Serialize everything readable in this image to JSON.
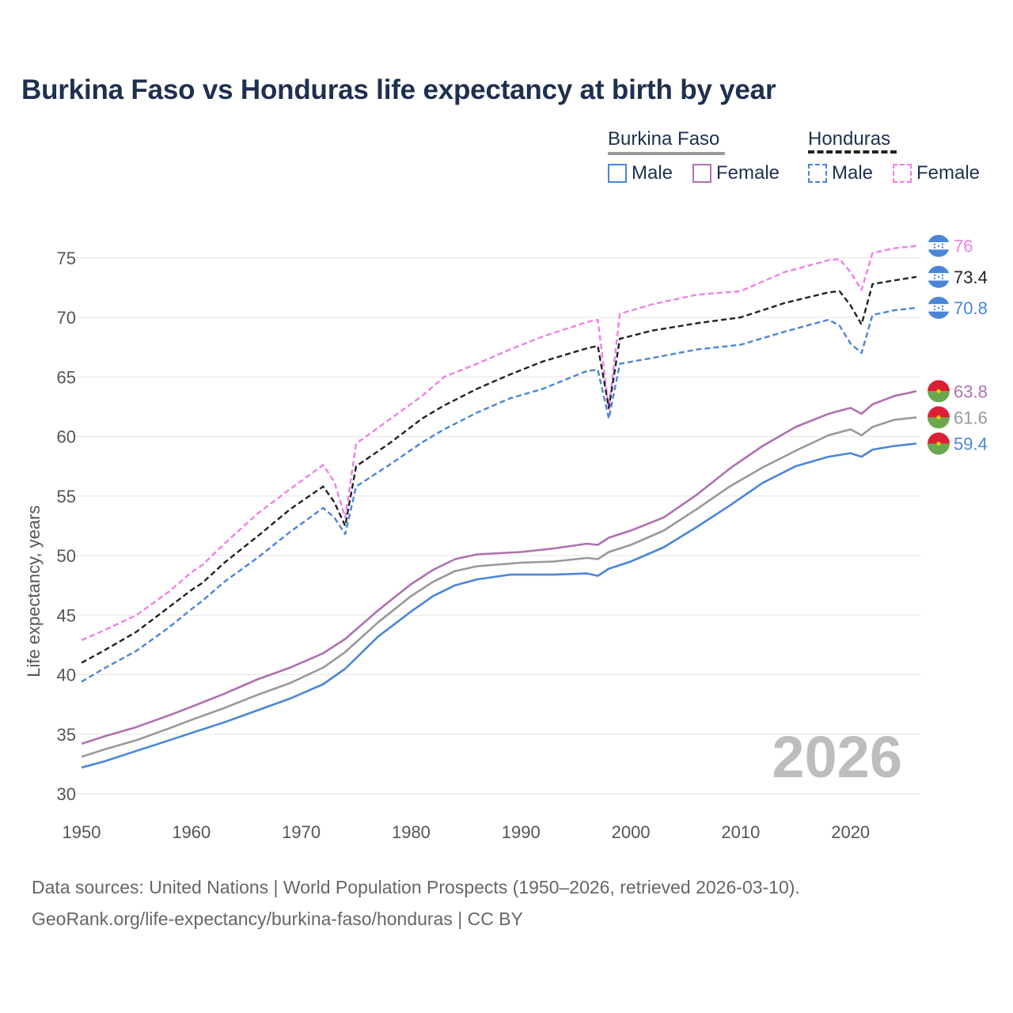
{
  "chart_data": {
    "type": "line",
    "title": "Burkina Faso vs Honduras life expectancy at birth by year",
    "ylabel": "Life expectancy, years",
    "xlabel": "",
    "xlim": [
      1950,
      2026
    ],
    "ylim": [
      30,
      77
    ],
    "x_ticks": [
      1950,
      1960,
      1970,
      1980,
      1990,
      2000,
      2010,
      2020
    ],
    "y_ticks": [
      30,
      35,
      40,
      45,
      50,
      55,
      60,
      65,
      70,
      75
    ],
    "year_watermark": "2026",
    "legend": {
      "groups": [
        {
          "name": "Burkina Faso",
          "color": "#999999",
          "style": "solid"
        },
        {
          "name": "Honduras",
          "color": "#222222",
          "style": "dashed"
        }
      ],
      "items": [
        {
          "label": "Male",
          "color": "#4a86d8",
          "style": "solid"
        },
        {
          "label": "Female",
          "color": "#b070b0",
          "style": "solid"
        },
        {
          "label": "Male",
          "color": "#4a86d8",
          "style": "dashed"
        },
        {
          "label": "Female",
          "color": "#f080e8",
          "style": "dashed"
        }
      ]
    },
    "series": [
      {
        "name": "Honduras Female",
        "country": "Honduras",
        "color": "#f080e8",
        "dash": true,
        "end_label": "76",
        "flag": "honduras",
        "points": [
          [
            1950,
            42.9
          ],
          [
            1952,
            43.7
          ],
          [
            1955,
            45.0
          ],
          [
            1958,
            47.0
          ],
          [
            1960,
            48.6
          ],
          [
            1961,
            49.2
          ],
          [
            1963,
            51.0
          ],
          [
            1966,
            53.5
          ],
          [
            1969,
            55.6
          ],
          [
            1972,
            57.6
          ],
          [
            1973,
            56.2
          ],
          [
            1974,
            53.2
          ],
          [
            1975,
            59.4
          ],
          [
            1978,
            61.4
          ],
          [
            1981,
            63.4
          ],
          [
            1983,
            65.0
          ],
          [
            1986,
            66.1
          ],
          [
            1989,
            67.3
          ],
          [
            1992,
            68.4
          ],
          [
            1996,
            69.6
          ],
          [
            1997,
            69.8
          ],
          [
            1998,
            62.3
          ],
          [
            1999,
            70.3
          ],
          [
            2002,
            71.1
          ],
          [
            2006,
            71.9
          ],
          [
            2010,
            72.2
          ],
          [
            2014,
            73.8
          ],
          [
            2018,
            74.8
          ],
          [
            2019,
            74.9
          ],
          [
            2020,
            73.8
          ],
          [
            2021,
            72.3
          ],
          [
            2022,
            75.4
          ],
          [
            2024,
            75.8
          ],
          [
            2026,
            76.0
          ]
        ]
      },
      {
        "name": "Honduras Both",
        "country": "Honduras",
        "color": "#222222",
        "dash": true,
        "end_label": "73.4",
        "flag": "honduras",
        "points": [
          [
            1950,
            41.0
          ],
          [
            1952,
            42.0
          ],
          [
            1955,
            43.6
          ],
          [
            1958,
            45.7
          ],
          [
            1960,
            47.1
          ],
          [
            1961,
            47.7
          ],
          [
            1963,
            49.4
          ],
          [
            1966,
            51.6
          ],
          [
            1969,
            53.9
          ],
          [
            1972,
            55.8
          ],
          [
            1973,
            54.5
          ],
          [
            1974,
            52.5
          ],
          [
            1975,
            57.5
          ],
          [
            1978,
            59.4
          ],
          [
            1981,
            61.5
          ],
          [
            1983,
            62.6
          ],
          [
            1986,
            64.0
          ],
          [
            1989,
            65.2
          ],
          [
            1992,
            66.3
          ],
          [
            1996,
            67.4
          ],
          [
            1997,
            67.6
          ],
          [
            1998,
            62.4
          ],
          [
            1999,
            68.2
          ],
          [
            2002,
            68.9
          ],
          [
            2006,
            69.5
          ],
          [
            2010,
            70.0
          ],
          [
            2014,
            71.2
          ],
          [
            2018,
            72.1
          ],
          [
            2019,
            72.2
          ],
          [
            2020,
            71.0
          ],
          [
            2021,
            69.4
          ],
          [
            2022,
            72.8
          ],
          [
            2024,
            73.1
          ],
          [
            2026,
            73.4
          ]
        ]
      },
      {
        "name": "Honduras Male",
        "country": "Honduras",
        "color": "#4a86d8",
        "dash": true,
        "end_label": "70.8",
        "flag": "honduras",
        "points": [
          [
            1950,
            39.4
          ],
          [
            1952,
            40.5
          ],
          [
            1955,
            42.0
          ],
          [
            1958,
            44.0
          ],
          [
            1960,
            45.5
          ],
          [
            1961,
            46.2
          ],
          [
            1963,
            47.8
          ],
          [
            1966,
            49.8
          ],
          [
            1969,
            52.0
          ],
          [
            1972,
            54.0
          ],
          [
            1973,
            53.2
          ],
          [
            1974,
            51.8
          ],
          [
            1975,
            55.8
          ],
          [
            1978,
            57.6
          ],
          [
            1981,
            59.5
          ],
          [
            1983,
            60.6
          ],
          [
            1986,
            62.0
          ],
          [
            1989,
            63.2
          ],
          [
            1992,
            64.0
          ],
          [
            1996,
            65.5
          ],
          [
            1997,
            65.6
          ],
          [
            1998,
            61.5
          ],
          [
            1999,
            66.1
          ],
          [
            2002,
            66.6
          ],
          [
            2006,
            67.3
          ],
          [
            2010,
            67.7
          ],
          [
            2014,
            68.8
          ],
          [
            2018,
            69.8
          ],
          [
            2019,
            69.3
          ],
          [
            2020,
            67.8
          ],
          [
            2021,
            67.0
          ],
          [
            2022,
            70.2
          ],
          [
            2024,
            70.6
          ],
          [
            2026,
            70.8
          ]
        ]
      },
      {
        "name": "Burkina Faso Female",
        "country": "Burkina Faso",
        "color": "#b070b0",
        "dash": false,
        "end_label": "63.8",
        "flag": "burkina",
        "points": [
          [
            1950,
            34.2
          ],
          [
            1952,
            34.8
          ],
          [
            1955,
            35.6
          ],
          [
            1958,
            36.6
          ],
          [
            1960,
            37.3
          ],
          [
            1963,
            38.4
          ],
          [
            1966,
            39.6
          ],
          [
            1969,
            40.6
          ],
          [
            1972,
            41.8
          ],
          [
            1974,
            43.0
          ],
          [
            1977,
            45.4
          ],
          [
            1980,
            47.6
          ],
          [
            1982,
            48.8
          ],
          [
            1984,
            49.7
          ],
          [
            1986,
            50.1
          ],
          [
            1990,
            50.3
          ],
          [
            1993,
            50.6
          ],
          [
            1996,
            51.0
          ],
          [
            1997,
            50.9
          ],
          [
            1998,
            51.5
          ],
          [
            2000,
            52.1
          ],
          [
            2003,
            53.2
          ],
          [
            2006,
            55.1
          ],
          [
            2009,
            57.3
          ],
          [
            2012,
            59.2
          ],
          [
            2015,
            60.8
          ],
          [
            2018,
            61.9
          ],
          [
            2020,
            62.4
          ],
          [
            2021,
            61.9
          ],
          [
            2022,
            62.7
          ],
          [
            2024,
            63.4
          ],
          [
            2026,
            63.8
          ]
        ]
      },
      {
        "name": "Burkina Faso Both",
        "country": "Burkina Faso",
        "color": "#999999",
        "dash": false,
        "end_label": "61.6",
        "flag": "burkina",
        "points": [
          [
            1950,
            33.1
          ],
          [
            1952,
            33.7
          ],
          [
            1955,
            34.5
          ],
          [
            1958,
            35.5
          ],
          [
            1960,
            36.2
          ],
          [
            1963,
            37.2
          ],
          [
            1966,
            38.3
          ],
          [
            1969,
            39.3
          ],
          [
            1972,
            40.6
          ],
          [
            1974,
            41.9
          ],
          [
            1977,
            44.4
          ],
          [
            1980,
            46.6
          ],
          [
            1982,
            47.8
          ],
          [
            1984,
            48.7
          ],
          [
            1986,
            49.1
          ],
          [
            1990,
            49.4
          ],
          [
            1993,
            49.5
          ],
          [
            1996,
            49.8
          ],
          [
            1997,
            49.7
          ],
          [
            1998,
            50.3
          ],
          [
            2000,
            50.9
          ],
          [
            2003,
            52.1
          ],
          [
            2006,
            53.9
          ],
          [
            2009,
            55.8
          ],
          [
            2012,
            57.4
          ],
          [
            2015,
            58.8
          ],
          [
            2018,
            60.1
          ],
          [
            2020,
            60.6
          ],
          [
            2021,
            60.1
          ],
          [
            2022,
            60.8
          ],
          [
            2024,
            61.4
          ],
          [
            2026,
            61.6
          ]
        ]
      },
      {
        "name": "Burkina Faso Male",
        "country": "Burkina Faso",
        "color": "#4a86d8",
        "dash": false,
        "end_label": "59.4",
        "flag": "burkina",
        "points": [
          [
            1950,
            32.2
          ],
          [
            1952,
            32.7
          ],
          [
            1955,
            33.6
          ],
          [
            1958,
            34.5
          ],
          [
            1960,
            35.1
          ],
          [
            1963,
            36.0
          ],
          [
            1966,
            37.0
          ],
          [
            1969,
            38.0
          ],
          [
            1972,
            39.2
          ],
          [
            1974,
            40.5
          ],
          [
            1977,
            43.2
          ],
          [
            1980,
            45.3
          ],
          [
            1982,
            46.6
          ],
          [
            1984,
            47.5
          ],
          [
            1986,
            48.0
          ],
          [
            1989,
            48.4
          ],
          [
            1993,
            48.4
          ],
          [
            1996,
            48.5
          ],
          [
            1997,
            48.3
          ],
          [
            1998,
            48.9
          ],
          [
            2000,
            49.5
          ],
          [
            2003,
            50.7
          ],
          [
            2006,
            52.4
          ],
          [
            2009,
            54.2
          ],
          [
            2012,
            56.1
          ],
          [
            2015,
            57.5
          ],
          [
            2018,
            58.3
          ],
          [
            2020,
            58.6
          ],
          [
            2021,
            58.3
          ],
          [
            2022,
            58.9
          ],
          [
            2024,
            59.2
          ],
          [
            2026,
            59.4
          ]
        ]
      }
    ]
  },
  "source": {
    "line1": "Data sources: United Nations | World Population Prospects (1950–2026, retrieved 2026-03-10).",
    "line2": "GeoRank.org/life-expectancy/burkina-faso/honduras | CC BY"
  }
}
